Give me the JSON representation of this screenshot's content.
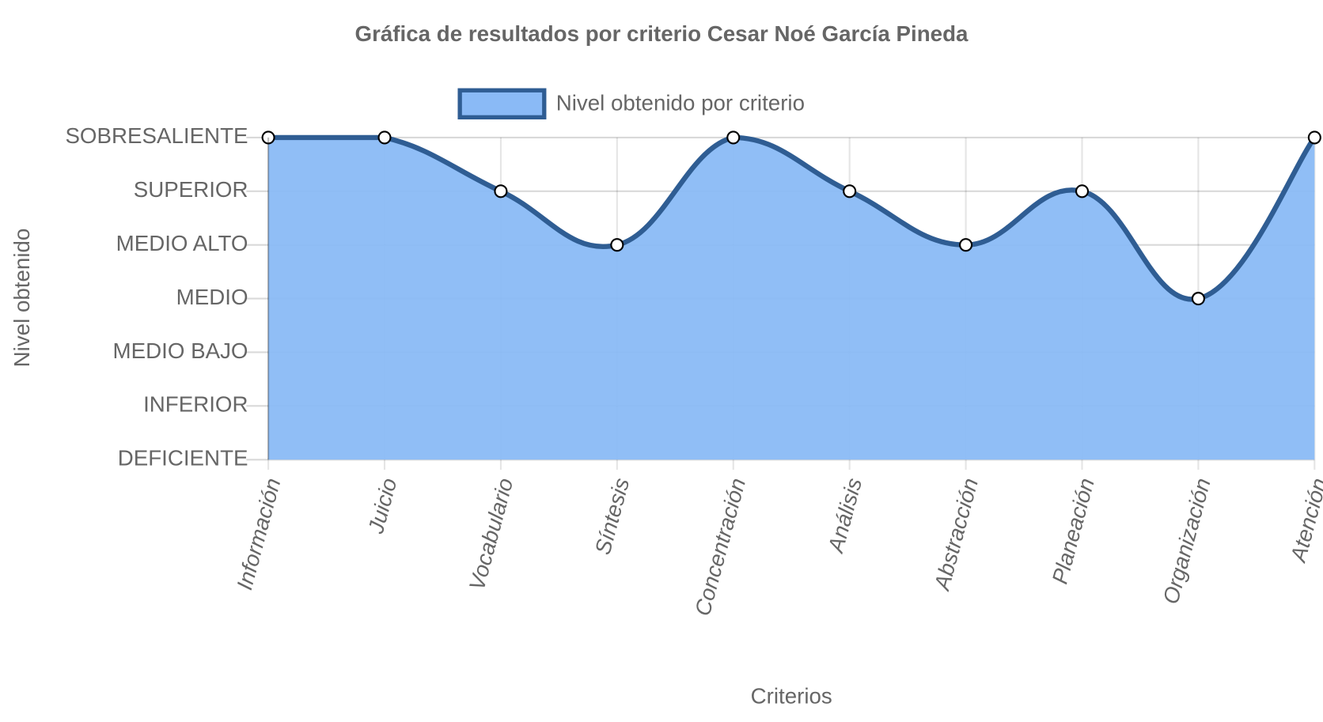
{
  "chart_data": {
    "type": "line",
    "title": "Gráfica de resultados por criterio Cesar Noé García Pineda",
    "x_label": "Criterios",
    "y_label": "Nivel obtenido",
    "categories": [
      "Información",
      "Juicio",
      "Vocabulario",
      "Síntesis",
      "Concentración",
      "Análisis",
      "Abstracción",
      "Planeación",
      "Organización",
      "Atención"
    ],
    "series": [
      {
        "name": "Nivel obtenido por criterio",
        "color": "#2f5d93",
        "fill": "#8abaf6",
        "values": [
          6,
          6,
          5,
          4,
          6,
          5,
          4,
          5,
          3,
          6
        ]
      }
    ],
    "ylim": [
      0,
      6
    ],
    "yticks": [
      {
        "value": 0,
        "label": "DEFICIENTE"
      },
      {
        "value": 1,
        "label": "INFERIOR"
      },
      {
        "value": 2,
        "label": "MEDIO BAJO"
      },
      {
        "value": 3,
        "label": "MEDIO"
      },
      {
        "value": 4,
        "label": "MEDIO ALTO"
      },
      {
        "value": 5,
        "label": "SUPERIOR"
      },
      {
        "value": 6,
        "label": "SOBRESALIENTE"
      }
    ],
    "grid": true,
    "legend": "top",
    "smooth": true,
    "area": true
  }
}
